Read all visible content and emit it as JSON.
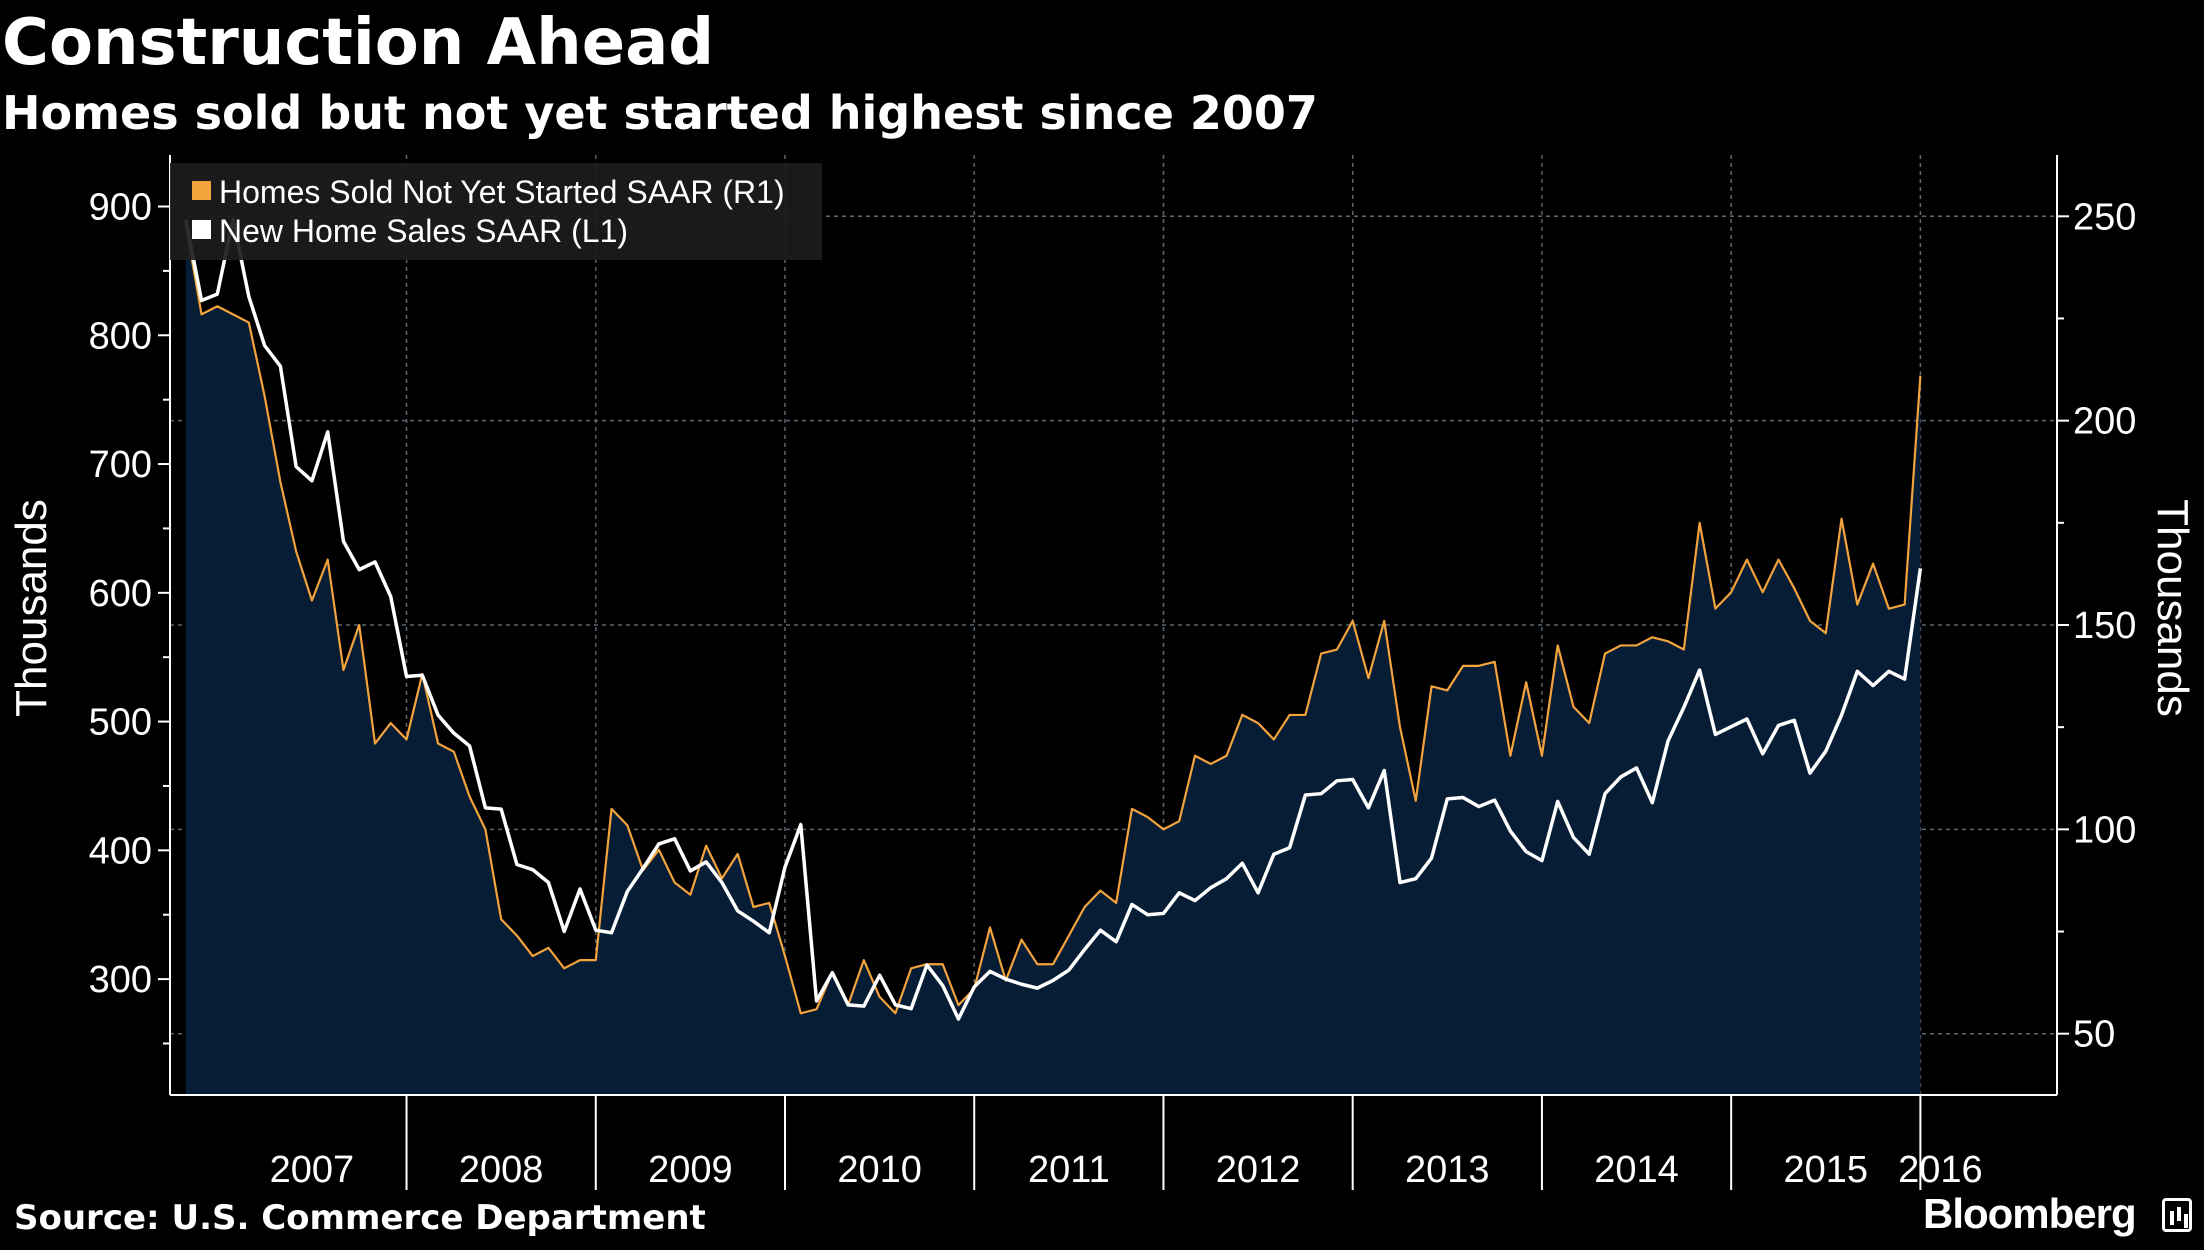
{
  "header": {
    "title": "Construction Ahead",
    "subtitle": "Homes sold but not yet started highest since 2007"
  },
  "footer": {
    "source": "Source: U.S. Commerce Department",
    "brand": "Bloomberg"
  },
  "colors": {
    "background": "#000000",
    "plot_fill": "#071d36",
    "sold_not_started": "#f2a33c",
    "new_home_sales": "#ffffff",
    "grid": "#5a6670"
  },
  "chart_data": {
    "type": "line",
    "x_unit": "month",
    "x_start": "2006-11",
    "x_range": [
      "2006-10",
      "2016-07"
    ],
    "grid": true,
    "legend_position": "top-left",
    "x_tick_labels": [
      "2007",
      "2008",
      "2009",
      "2010",
      "2011",
      "2012",
      "2013",
      "2014",
      "2015",
      "2016"
    ],
    "left_axis": {
      "label": "Thousands",
      "ticks": [
        300,
        400,
        500,
        600,
        700,
        800,
        900
      ],
      "range": [
        210,
        940
      ]
    },
    "right_axis": {
      "label": "Thousands",
      "ticks": [
        50,
        100,
        150,
        200,
        250
      ],
      "range": [
        35,
        265
      ]
    },
    "series": [
      {
        "name": "Homes Sold Not Yet Started SAAR (R1)",
        "axis": "right",
        "area_fill": true,
        "values": [
          248,
          226,
          228,
          226,
          224,
          206,
          185,
          168,
          156,
          166,
          139,
          150,
          121,
          126,
          122,
          138,
          121,
          119,
          108,
          100,
          78,
          74,
          69,
          71,
          66,
          68,
          68,
          105,
          101,
          90,
          95,
          87,
          84,
          96,
          88,
          94,
          81,
          82,
          69,
          55,
          56,
          65,
          57,
          68,
          59,
          55,
          66,
          67,
          67,
          57,
          61,
          76,
          63,
          73,
          67,
          67,
          74,
          81,
          85,
          82,
          105,
          103,
          100,
          102,
          118,
          116,
          118,
          128,
          126,
          122,
          128,
          128,
          143,
          144,
          151,
          137,
          151,
          125,
          107,
          135,
          134,
          140,
          140,
          141,
          118,
          136,
          118,
          145,
          130,
          126,
          143,
          145,
          145,
          147,
          146,
          144,
          175,
          154,
          158,
          166,
          158,
          166,
          159,
          151,
          148,
          176,
          155,
          165,
          154,
          155,
          211
        ]
      },
      {
        "name": "New Home Sales SAAR (L1)",
        "axis": "left",
        "area_fill": false,
        "values": [
          890,
          827,
          832,
          890,
          830,
          792,
          776,
          698,
          687,
          725,
          640,
          618,
          624,
          597,
          535,
          536,
          505,
          491,
          481,
          433,
          432,
          389,
          385,
          375,
          337,
          370,
          338,
          336,
          368,
          386,
          405,
          409,
          384,
          391,
          375,
          353,
          345,
          336,
          387,
          420,
          283,
          305,
          280,
          279,
          303,
          280,
          277,
          311,
          295,
          269,
          294,
          306,
          300,
          296,
          293,
          299,
          307,
          323,
          338,
          329,
          358,
          350,
          351,
          367,
          361,
          371,
          378,
          390,
          367,
          397,
          402,
          443,
          444,
          454,
          455,
          433,
          462,
          375,
          378,
          394,
          440,
          441,
          434,
          439,
          415,
          399,
          392,
          438,
          410,
          397,
          444,
          457,
          464,
          437,
          485,
          511,
          540,
          490,
          496,
          502,
          475,
          497,
          501,
          460,
          477,
          505,
          539,
          528,
          539,
          533,
          619
        ]
      }
    ]
  }
}
